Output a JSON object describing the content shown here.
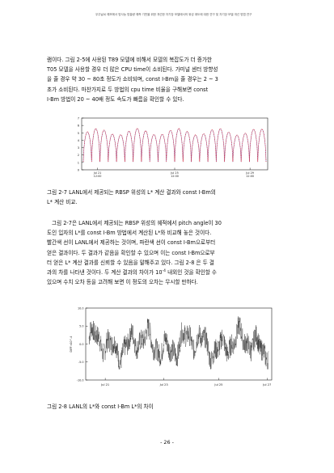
{
  "header": "우주날씨 예보에서 방사능 방출량 예측 기반을 위한 개선한 자기장 모델에서의 위성 궤도에 대한 연구 및 자기장 모델 개선 방법 연구",
  "paragraph1": [
    "램이다. 그림 2-5에 사용된 T89 모델에 비해서 모델의 복잡도가 더 증가한",
    "T05 모델을 사용할 경우 더 많은 CPU time이 소비된다. 가미널 센터 방향성",
    "을 줄 경우 약 30 ~ 80초 정도가 소비되며, const I-Bm을 줄 경우는 2 ~ 3",
    "초가 소비된다. 마찬가지로 두 방법의 cpu time 비율을 구해보면 const",
    "I-Bm 방법이 20 ~ 40배 정도 속도가 빠름을 확인할 수 있다."
  ],
  "caption1": [
    "그림 2-7 LANL에서 제공되는 RBSP 위성의 L* 계산 결과와 const I-Bm의",
    "L* 계산 비교."
  ],
  "paragraph2": [
    "그림 2-7은 LANL에서 제공되는 RBSP 위성의 궤적에서 pitch angle이 30",
    "도인 입자의 L*를 const I-Bm 방법에서 계산된 L*와 비교해 놓은 것이다.",
    "빨간색 선이 LANL에서 제공하는 것이며, 파란색 선이 const I-Bm으로부터",
    "얻은 결과이다. 두 결과가 같음을 확인할 수 있으며 이는 const I-Bm으로부",
    "터 얻은 L* 계산 결과를 신뢰할 수 있음을 말해주고 있다. 그림 2-8 은 두 결",
    "과의 차를 나타낸 것이다. 두 계산 결과의 차이가 10",
    " 내외인 것을 확인할 수",
    "있으며 수치 오차 등을 고려해 보면 이 정도의 오차는 무시할 만하다."
  ],
  "superscript": "-4",
  "caption2": "그림 2-8 LANL의 L*와 const I-Bm L*의 차이",
  "page_number": "- 26 -",
  "chart_data": [
    {
      "type": "line",
      "title": "",
      "xlabel": "",
      "ylabel": "",
      "ylim": [
        0,
        7
      ],
      "y_ticks": [
        "7",
        "6",
        "5",
        "4",
        "3",
        "2",
        "1",
        "0"
      ],
      "x_tick_labels": [
        [
          "Jul 21",
          "12:00"
        ],
        [
          "Jul 25",
          "12:00"
        ],
        [
          "Jul 29",
          "12:00"
        ]
      ],
      "grid": false,
      "colors": {
        "lanl": "#e0202a",
        "const": "#3050d0"
      },
      "orbits": 22,
      "lstar_peak_range": [
        4.7,
        5.6
      ],
      "lstar_min": 1.1
    },
    {
      "type": "line",
      "title": "",
      "xlabel": "",
      "ylabel": "DIFF x10^-4",
      "ylim": [
        -10.0,
        10.0
      ],
      "y_ticks": [
        "10.0",
        "5.0",
        "0.0",
        "-5.0",
        "-10.0"
      ],
      "x_tick_labels": [
        "Jul 21",
        "Jul 23",
        "Jul 25",
        "Jul 27"
      ],
      "grid": false,
      "colors": {
        "diff": "#111111"
      },
      "amplitude_range": [
        -7,
        8
      ]
    }
  ]
}
